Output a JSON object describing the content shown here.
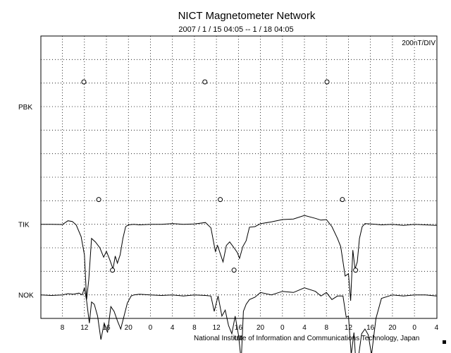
{
  "header": {
    "title": "NICT Magnetometer Network",
    "date_range": "2007 / 1 / 15  04:05 -- 1 / 18  04:05",
    "scale": "200nT/DIV"
  },
  "footer": {
    "credit": "National Institute of Information and Communications Technology, Japan",
    "ut_label": "UT"
  },
  "chart_data": {
    "type": "line",
    "title": "NICT Magnetometer Network",
    "subtitle": "2007 / 1 / 15  04:05 -- 1 / 18  04:05",
    "xlabel": "UT",
    "ylabel": "",
    "scale_label": "200nT/DIV",
    "x_tick_labels": [
      "8",
      "12",
      "16",
      "20",
      "0",
      "4",
      "8",
      "12",
      "16",
      "20",
      "0",
      "4",
      "8",
      "12",
      "16",
      "20",
      "0",
      "4"
    ],
    "xlim_hours": [
      4.083,
      76.083
    ],
    "x_tick_start_hour": 8,
    "x_tick_step_hours": 4,
    "grid": true,
    "y_divisions": 12,
    "series": [
      {
        "name": "PBK",
        "baseline_division": 3,
        "markers_hours": [
          11.9,
          33.9,
          56.1
        ],
        "x_hours": [],
        "values_nT": []
      },
      {
        "name": "TIK",
        "baseline_division": 8,
        "markers_hours": [
          14.6,
          36.7,
          58.9
        ],
        "x_hours": [
          4.1,
          6,
          8,
          9,
          9.8,
          10.5,
          11.4,
          12,
          12.4,
          12.8,
          13.3,
          14,
          14.8,
          15.5,
          16,
          16.6,
          17.2,
          17.6,
          18,
          18.5,
          19,
          19.5,
          20,
          21,
          22,
          24,
          26,
          28,
          30,
          32,
          34,
          35,
          35.8,
          36.2,
          36.8,
          37.2,
          37.8,
          38.4,
          39.2,
          39.8,
          40.2,
          40.8,
          41.4,
          42,
          43,
          44,
          46,
          48,
          50,
          52,
          54,
          55,
          56,
          57,
          58,
          58.6,
          59.4,
          60,
          60.4,
          60.8,
          61.2,
          61.6,
          62,
          62.5,
          63,
          64,
          65,
          66,
          68,
          70,
          72,
          74,
          76
        ],
        "values_nT": [
          0,
          0,
          -2,
          30,
          24,
          -5,
          -105,
          -260,
          -640,
          -470,
          -120,
          -150,
          -200,
          -280,
          -230,
          -300,
          -380,
          -270,
          -330,
          -260,
          -120,
          -20,
          -5,
          0,
          -5,
          0,
          0,
          5,
          0,
          3,
          15,
          -30,
          -230,
          -180,
          -265,
          -320,
          -180,
          -150,
          -200,
          -240,
          -290,
          -190,
          -140,
          -25,
          -20,
          5,
          20,
          40,
          45,
          75,
          50,
          35,
          40,
          -20,
          -120,
          -190,
          -440,
          -420,
          -650,
          -220,
          -380,
          -320,
          -120,
          -20,
          5,
          3,
          0,
          -5,
          0,
          -10,
          0,
          -5,
          -10
        ]
      },
      {
        "name": "NOK",
        "baseline_division": 11,
        "markers_hours": [
          17.1,
          39.2,
          61.3
        ],
        "x_hours": [
          4.1,
          6,
          8,
          9,
          10,
          11,
          11.6,
          12,
          12.4,
          12.9,
          13.3,
          13.8,
          14.4,
          15,
          15.6,
          16.2,
          16.8,
          17.4,
          18,
          18.6,
          19.2,
          19.8,
          20.5,
          21,
          22,
          24,
          26,
          28,
          30,
          32,
          34,
          35,
          35.6,
          36.3,
          37,
          37.6,
          38.2,
          38.8,
          39.4,
          40,
          40.5,
          40.9,
          41.4,
          42,
          43,
          44,
          46,
          48,
          50,
          52,
          54,
          55,
          56,
          57,
          58,
          59,
          59.6,
          60,
          60.5,
          61,
          61.4,
          61.9,
          62.4,
          63,
          63.6,
          64.2,
          65,
          66,
          68,
          70,
          72,
          74,
          76
        ],
        "values_nT": [
          0,
          -5,
          0,
          10,
          5,
          15,
          0,
          60,
          -50,
          -240,
          -60,
          -80,
          -180,
          -380,
          -240,
          -320,
          -100,
          -140,
          -220,
          -290,
          -180,
          -70,
          -10,
          0,
          5,
          0,
          -5,
          0,
          -10,
          0,
          -5,
          -10,
          -140,
          -10,
          -180,
          -130,
          -260,
          -330,
          -180,
          -340,
          -560,
          -140,
          -80,
          -40,
          -20,
          20,
          0,
          30,
          20,
          60,
          30,
          -10,
          20,
          -40,
          -10,
          -10,
          -190,
          -180,
          -510,
          -320,
          -610,
          -500,
          -330,
          -290,
          -340,
          -510,
          -200,
          -30,
          0,
          -10,
          0,
          0,
          -10
        ]
      }
    ]
  }
}
